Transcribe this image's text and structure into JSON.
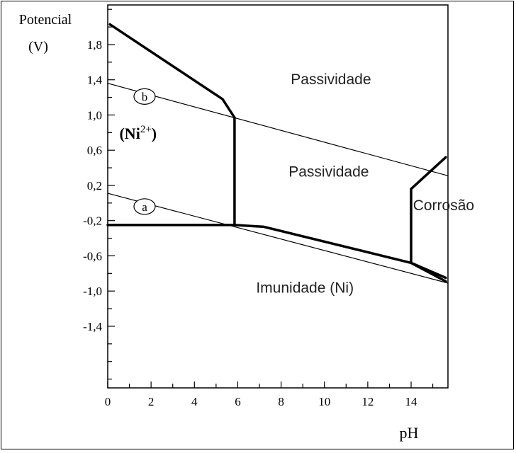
{
  "chart_data": {
    "type": "line",
    "title": "",
    "ylabel_line1": "Potencial",
    "ylabel_line2": "(V)",
    "xlabel": "pH",
    "xlim": [
      0,
      15.7
    ],
    "ylim": [
      -2.1,
      2.25
    ],
    "x_ticks": [
      0,
      2,
      4,
      6,
      8,
      10,
      12,
      14
    ],
    "y_ticks": [
      {
        "value": 1.8,
        "label": "1,8"
      },
      {
        "value": 1.4,
        "label": "1,4"
      },
      {
        "value": 1.0,
        "label": "1,0"
      },
      {
        "value": 0.6,
        "label": "0,6"
      },
      {
        "value": 0.2,
        "label": "0,2"
      },
      {
        "value": -0.2,
        "label": "-0,2"
      },
      {
        "value": -0.6,
        "label": "-0,6"
      },
      {
        "value": -1.0,
        "label": "-1,0"
      },
      {
        "value": -1.4,
        "label": "-1,4"
      }
    ],
    "series": [
      {
        "key": "line_b",
        "style": "thin",
        "x": [
          0,
          15.7
        ],
        "y": [
          1.36,
          0.31
        ]
      },
      {
        "key": "line_a",
        "style": "thin",
        "x": [
          0,
          15.7
        ],
        "y": [
          0.11,
          -0.91
        ]
      },
      {
        "key": "ni2_upper",
        "style": "thick",
        "x": [
          0.1,
          5.3,
          5.85
        ],
        "y": [
          2.03,
          1.18,
          0.97
        ]
      },
      {
        "key": "ni2_vertical",
        "style": "thick",
        "x": [
          5.85,
          5.85
        ],
        "y": [
          0.97,
          -0.25
        ]
      },
      {
        "key": "immunity_boundary",
        "style": "thick",
        "x": [
          0,
          5.85,
          7.2,
          14.0,
          15.6
        ],
        "y": [
          -0.25,
          -0.25,
          -0.27,
          -0.68,
          -0.85
        ]
      },
      {
        "key": "corrosion_vertical",
        "style": "thick",
        "x": [
          14.0,
          14.0,
          15.6
        ],
        "y": [
          -0.68,
          0.16,
          0.52
        ]
      },
      {
        "key": "corrosion_lower",
        "style": "thick",
        "x": [
          14.0,
          15.6
        ],
        "y": [
          -0.68,
          -0.89
        ]
      }
    ],
    "circle_markers": [
      {
        "label": "b",
        "x": 1.7,
        "y": 1.21
      },
      {
        "label": "a",
        "x": 1.7,
        "y": -0.04
      }
    ],
    "annotations": {
      "passividade_upper": {
        "text": "Passividade",
        "x": 10.3,
        "y": 1.35
      },
      "ni2_base": "(Ni",
      "ni2_sup": "2+",
      "ni2_close": ")",
      "ni2_pos": {
        "x": 1.4,
        "y": 0.73
      },
      "passividade_middle": {
        "text": "Passividade",
        "x": 10.2,
        "y": 0.3
      },
      "corrosao": {
        "text": "Corrosão",
        "x": 15.5,
        "y": -0.08
      },
      "imunidade": {
        "text": "Imunidade (Ni)",
        "x": 9.1,
        "y": -1.02
      }
    },
    "grid": false,
    "legend": "none"
  }
}
